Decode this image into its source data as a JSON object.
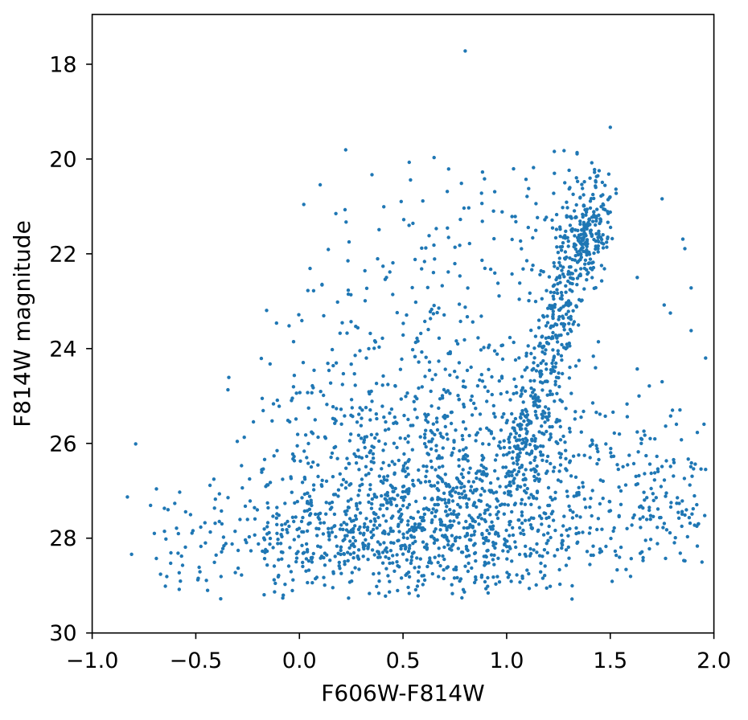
{
  "chart_data": {
    "type": "scatter",
    "title": "",
    "xlabel": "F606W-F814W",
    "ylabel": "F814W magnitude",
    "x_axis": {
      "label": "F606W-F814W",
      "min": -1.0,
      "max": 2.0,
      "ticks": [
        {
          "v": -1.0,
          "t": "−1.0"
        },
        {
          "v": -0.5,
          "t": "−0.5"
        },
        {
          "v": 0.0,
          "t": "0.0"
        },
        {
          "v": 0.5,
          "t": "0.5"
        },
        {
          "v": 1.0,
          "t": "1.0"
        },
        {
          "v": 1.5,
          "t": "1.5"
        },
        {
          "v": 2.0,
          "t": "2.0"
        }
      ]
    },
    "y_axis": {
      "label": "F814W magnitude",
      "top": 16.95,
      "bottom": 30.0,
      "inverted": true,
      "ticks": [
        {
          "v": 18,
          "t": "18"
        },
        {
          "v": 20,
          "t": "20"
        },
        {
          "v": 22,
          "t": "22"
        },
        {
          "v": 24,
          "t": "24"
        },
        {
          "v": 26,
          "t": "26"
        },
        {
          "v": 28,
          "t": "28"
        },
        {
          "v": 30,
          "t": "30"
        }
      ]
    },
    "grid": false,
    "legend": null,
    "marker": {
      "color": "#1f77b4",
      "radius": 2.2
    },
    "spine_color": "#000000",
    "n_points_approx": 2550,
    "seed": 11,
    "components": [
      {
        "type": "gauss",
        "n": 650,
        "mx": 0.55,
        "my": 27.85,
        "sx": 0.45,
        "sy": 0.7,
        "clip": [
          -0.6,
          1.7,
          25.9,
          29.3
        ]
      },
      {
        "type": "gauss",
        "n": 420,
        "mx": 0.75,
        "my": 27.0,
        "sx": 0.52,
        "sy": 0.85,
        "clip": [
          -0.45,
          1.95,
          24.9,
          29.2
        ]
      },
      {
        "type": "gauss",
        "n": 320,
        "mx": 0.68,
        "my": 25.7,
        "sx": 0.48,
        "sy": 0.85,
        "clip": [
          -0.35,
          1.6,
          23.6,
          27.6
        ]
      },
      {
        "type": "gauss",
        "n": 180,
        "mx": 0.7,
        "my": 23.8,
        "sx": 0.45,
        "sy": 1.0,
        "clip": [
          -0.2,
          1.5,
          21.0,
          25.7
        ]
      },
      {
        "type": "gauss",
        "n": 70,
        "mx": 0.68,
        "my": 21.5,
        "sx": 0.38,
        "sy": 0.95,
        "clip": [
          0.0,
          1.45,
          19.8,
          23.2
        ]
      },
      {
        "type": "track",
        "n": 240,
        "x0": 1.05,
        "y0": 26.8,
        "x1": 1.25,
        "y1": 23.2,
        "jx": 0.06,
        "jy": 0.3
      },
      {
        "type": "track",
        "n": 120,
        "x0": 1.25,
        "y0": 23.2,
        "x1": 1.4,
        "y1": 21.4,
        "jx": 0.05,
        "jy": 0.35
      },
      {
        "type": "gauss",
        "n": 140,
        "mx": 1.4,
        "my": 21.5,
        "sx": 0.05,
        "sy": 0.45,
        "clip": [
          1.26,
          1.56,
          20.3,
          22.6
        ]
      },
      {
        "type": "gauss",
        "n": 50,
        "mx": 1.22,
        "my": 21.9,
        "sx": 0.09,
        "sy": 0.85,
        "clip": [
          1.05,
          1.45,
          20.2,
          23.8
        ]
      },
      {
        "type": "box",
        "n": 24,
        "xmin": 1.27,
        "xmax": 1.53,
        "ymin": 19.8,
        "ymax": 20.85
      },
      {
        "type": "gauss",
        "n": 90,
        "mx": 1.72,
        "my": 27.0,
        "sx": 0.17,
        "sy": 0.95,
        "clip": [
          1.5,
          1.97,
          24.6,
          29.0
        ]
      },
      {
        "type": "box",
        "n": 20,
        "xmin": 1.5,
        "xmax": 1.97,
        "ymin": 26.0,
        "ymax": 28.6
      },
      {
        "type": "box",
        "n": 25,
        "xmin": -0.72,
        "xmax": -0.33,
        "ymin": 26.8,
        "ymax": 29.25
      },
      {
        "type": "gauss",
        "n": 160,
        "mx": 0.45,
        "my": 28.35,
        "sx": 0.55,
        "sy": 0.45,
        "clip": [
          -0.55,
          1.5,
          27.5,
          29.3
        ]
      }
    ],
    "notable_points": [
      [
        0.8,
        17.72
      ],
      [
        1.5,
        19.33
      ],
      [
        1.23,
        19.84
      ],
      [
        0.35,
        20.33
      ],
      [
        0.53,
        20.07
      ],
      [
        0.65,
        19.97
      ],
      [
        0.72,
        20.21
      ],
      [
        1.75,
        20.84
      ],
      [
        1.85,
        21.69
      ],
      [
        1.86,
        21.89
      ],
      [
        1.63,
        22.5
      ],
      [
        1.89,
        22.72
      ],
      [
        1.76,
        23.08
      ],
      [
        1.79,
        23.25
      ],
      [
        1.89,
        23.62
      ],
      [
        1.96,
        24.2
      ],
      [
        1.63,
        24.43
      ],
      [
        1.75,
        24.7
      ],
      [
        1.8,
        25.3
      ],
      [
        1.63,
        25.76
      ],
      [
        1.92,
        25.77
      ],
      [
        1.96,
        26.55
      ],
      [
        1.9,
        27.38
      ],
      [
        -0.79,
        26.01
      ],
      [
        -0.69,
        26.96
      ],
      [
        -0.83,
        27.13
      ],
      [
        -0.7,
        27.9
      ],
      [
        -0.43,
        27.87
      ],
      [
        -0.55,
        28.19
      ],
      [
        -0.62,
        28.31
      ],
      [
        -0.81,
        28.34
      ],
      [
        -0.41,
        28.51
      ],
      [
        -0.67,
        28.76
      ],
      [
        -0.64,
        28.81
      ],
      [
        -0.58,
        28.73
      ],
      [
        -0.48,
        28.71
      ],
      [
        -0.49,
        28.88
      ],
      [
        -0.58,
        29.08
      ],
      [
        -0.38,
        29.28
      ],
      [
        -0.05,
        23.52
      ]
    ]
  }
}
